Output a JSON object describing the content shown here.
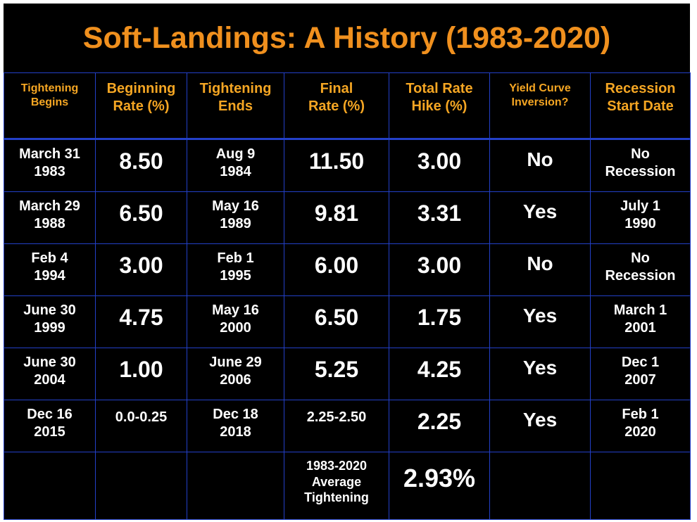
{
  "title": "Soft-Landings: A History (1983-2020)",
  "table": {
    "header": [
      "Tightening\nBegins",
      "Beginning\nRate (%)",
      "Tightening\nEnds",
      "Final\nRate (%)",
      "Total Rate\nHike (%)",
      "Yield Curve\nInversion?",
      "Recession\nStart Date"
    ],
    "rows": [
      [
        "March 31\n1983",
        "8.50",
        "Aug 9\n1984",
        "11.50",
        "3.00",
        "No",
        "No\nRecession"
      ],
      [
        "March 29\n1988",
        "6.50",
        "May 16\n1989",
        "9.81",
        "3.31",
        "Yes",
        "July 1\n1990"
      ],
      [
        "Feb 4\n1994",
        "3.00",
        "Feb 1\n1995",
        "6.00",
        "3.00",
        "No",
        "No\nRecession"
      ],
      [
        "June 30\n1999",
        "4.75",
        "May 16\n2000",
        "6.50",
        "1.75",
        "Yes",
        "March 1\n2001"
      ],
      [
        "June 30\n2004",
        "1.00",
        "June 29\n2006",
        "5.25",
        "4.25",
        "Yes",
        "Dec 1\n2007"
      ],
      [
        "Dec 16\n2015",
        "0.0-0.25",
        "Dec 18\n2018",
        "2.25-2.50",
        "2.25",
        "Yes",
        "Feb 1\n2020"
      ]
    ],
    "footer": {
      "label": "1983-2020\nAverage\nTightening",
      "value": "2.93%"
    }
  }
}
